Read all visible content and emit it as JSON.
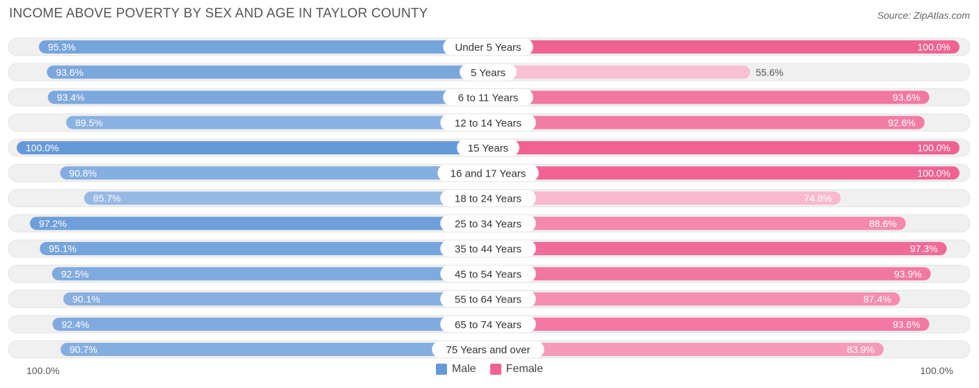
{
  "title": "INCOME ABOVE POVERTY BY SEX AND AGE IN TAYLOR COUNTY",
  "source": "Source: ZipAtlas.com",
  "colors": {
    "male": "#6699d8",
    "female": "#f06292",
    "track": "#f0f0f0"
  },
  "chart_data": {
    "type": "bar",
    "orientation": "horizontal-butterfly",
    "categories": [
      "Under 5 Years",
      "5 Years",
      "6 to 11 Years",
      "12 to 14 Years",
      "15 Years",
      "16 and 17 Years",
      "18 to 24 Years",
      "25 to 34 Years",
      "35 to 44 Years",
      "45 to 54 Years",
      "55 to 64 Years",
      "65 to 74 Years",
      "75 Years and over"
    ],
    "series": [
      {
        "name": "Male",
        "values": [
          95.3,
          93.6,
          93.4,
          89.5,
          100.0,
          90.8,
          85.7,
          97.2,
          95.1,
          92.5,
          90.1,
          92.4,
          90.7
        ],
        "labels": [
          "95.3%",
          "93.6%",
          "93.4%",
          "89.5%",
          "100.0%",
          "90.8%",
          "85.7%",
          "97.2%",
          "95.1%",
          "92.5%",
          "90.1%",
          "92.4%",
          "90.7%"
        ]
      },
      {
        "name": "Female",
        "values": [
          100.0,
          55.6,
          93.6,
          92.6,
          100.0,
          100.0,
          74.8,
          88.6,
          97.3,
          93.9,
          87.4,
          93.6,
          83.9
        ],
        "labels": [
          "100.0%",
          "55.6%",
          "93.6%",
          "92.6%",
          "100.0%",
          "100.0%",
          "74.8%",
          "88.6%",
          "97.3%",
          "93.9%",
          "87.4%",
          "93.6%",
          "83.9%"
        ]
      }
    ],
    "axis_left_label": "100.0%",
    "axis_right_label": "100.0%",
    "legend": [
      "Male",
      "Female"
    ]
  }
}
